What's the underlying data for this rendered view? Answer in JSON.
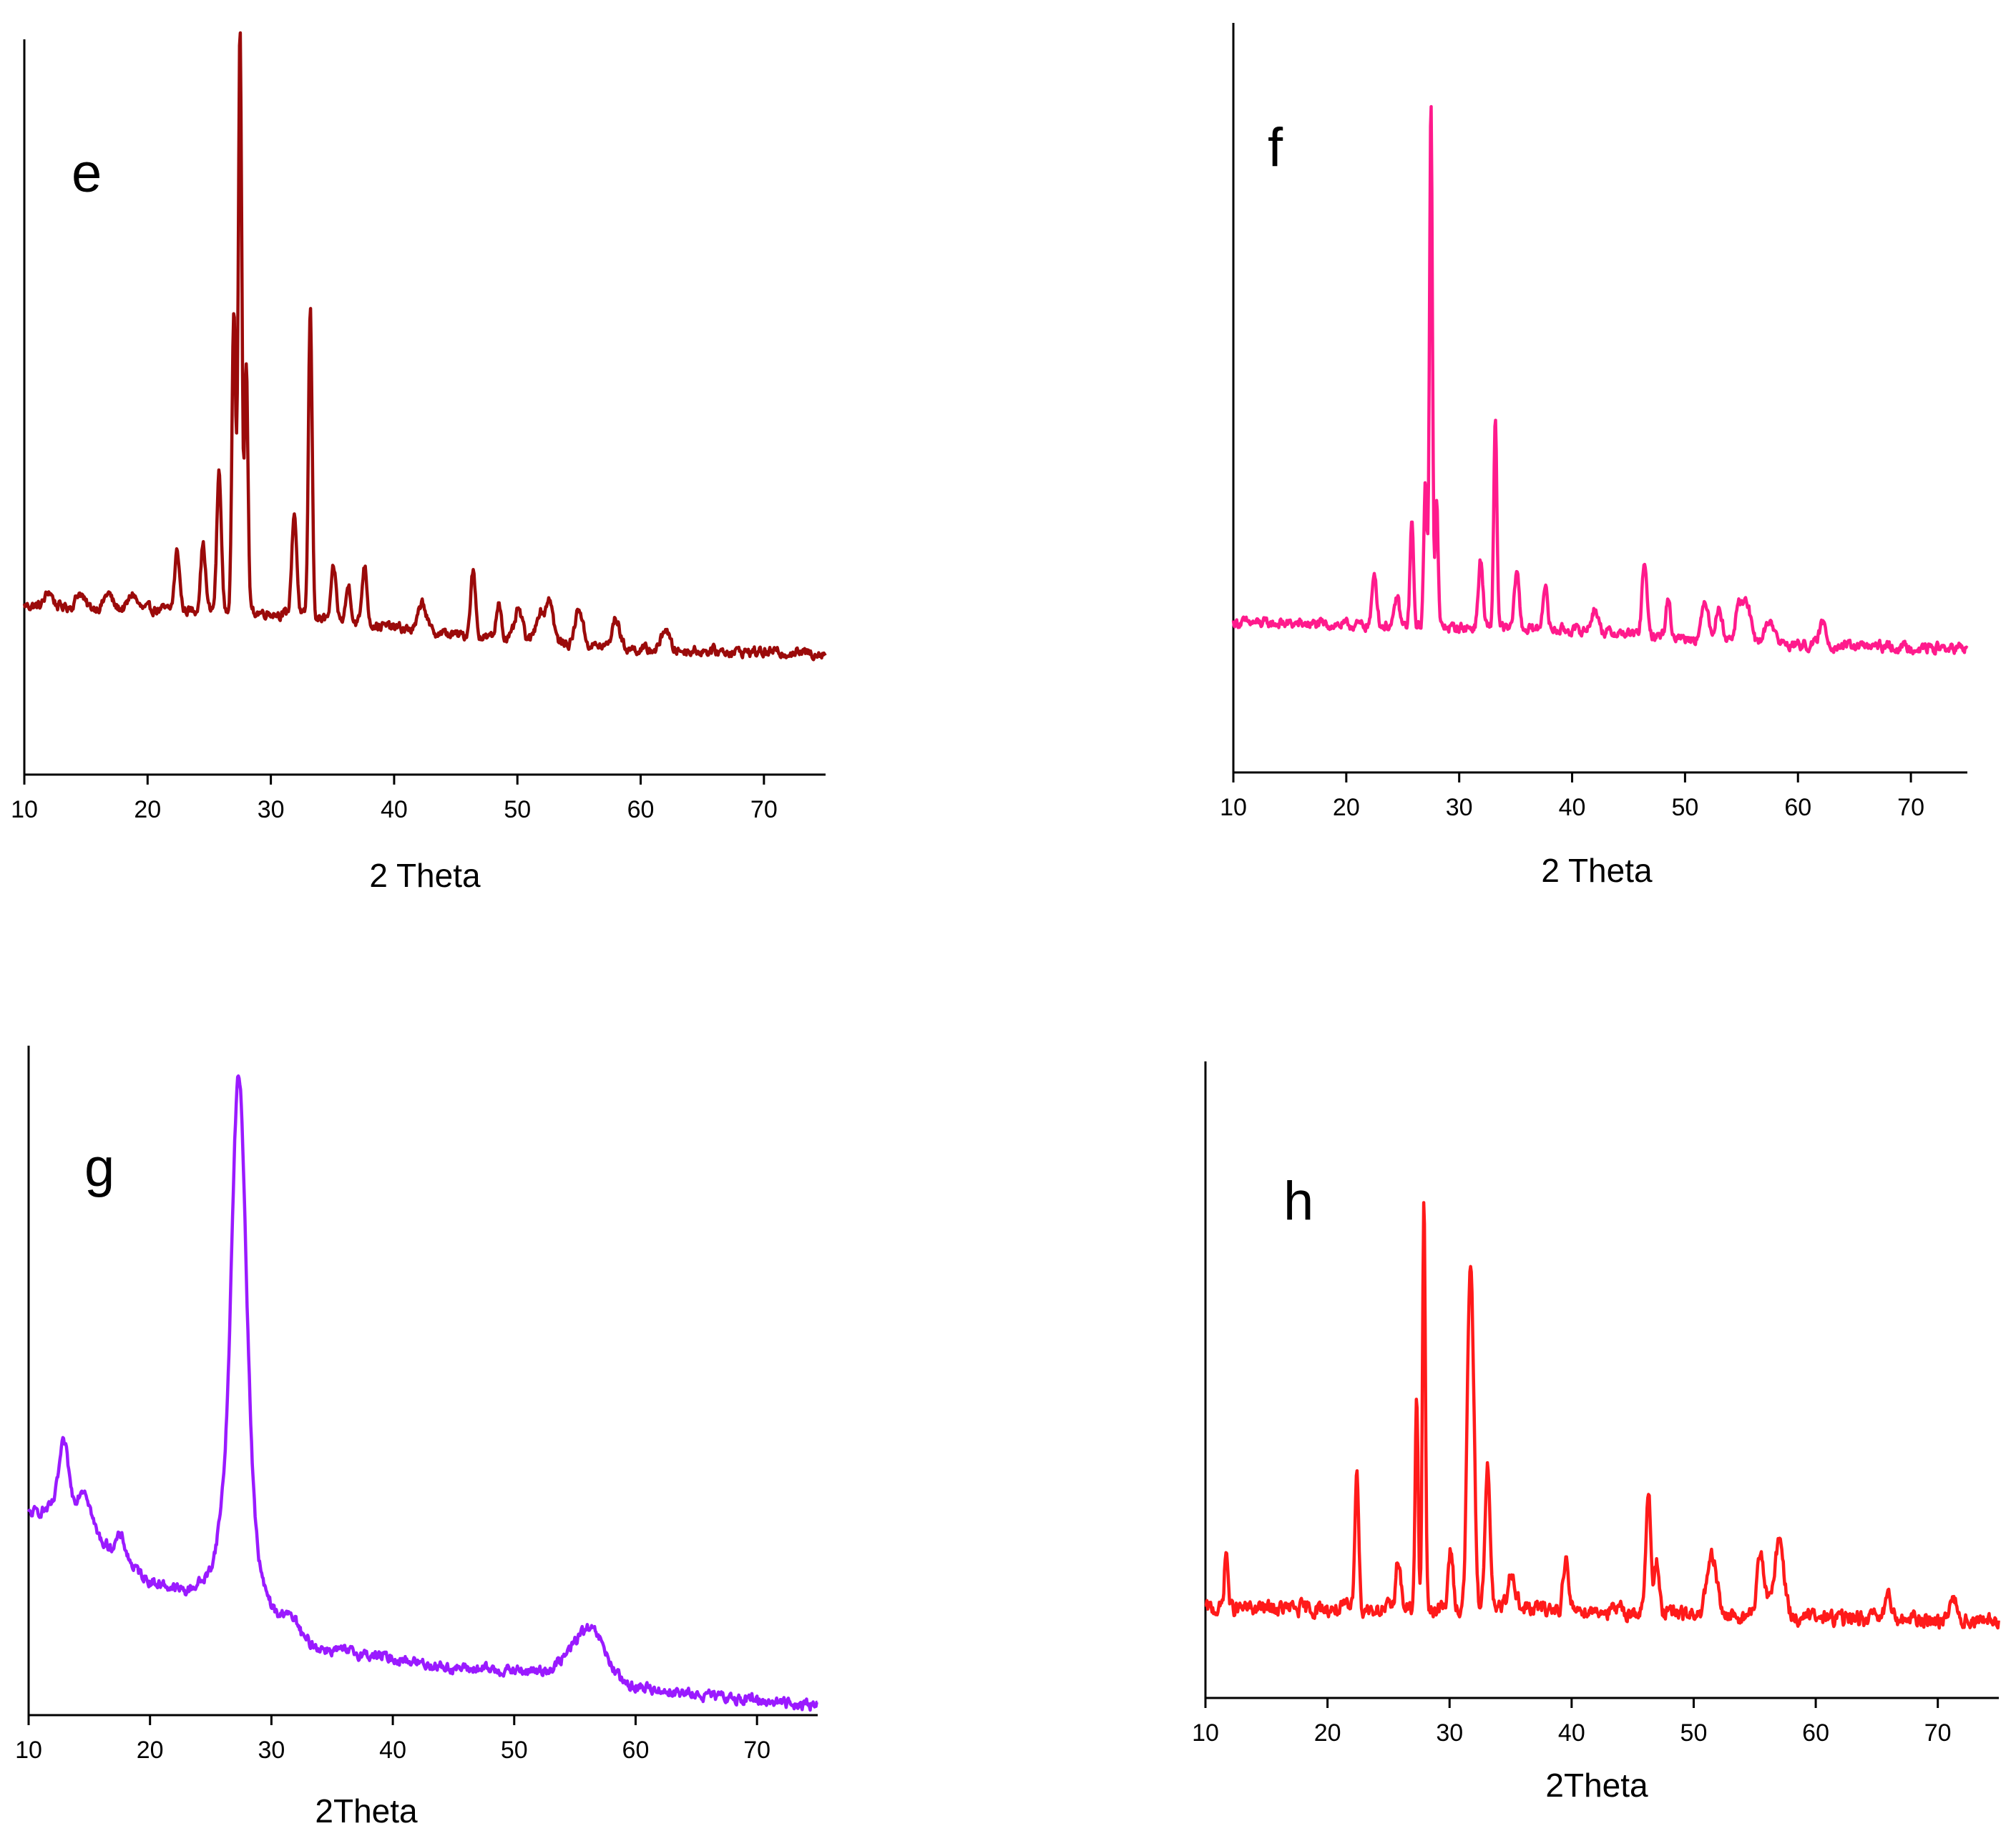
{
  "chart_data": [
    {
      "panel": "e",
      "type": "line",
      "label": "e",
      "xlabel": "2 Theta",
      "ylabel": "",
      "xlim": [
        10,
        75
      ],
      "xticks": [
        10,
        20,
        30,
        40,
        50,
        60,
        70
      ],
      "ylim": [
        0,
        100
      ],
      "color": "#9b0a0a",
      "series": [
        {
          "name": "e",
          "baseline": [
            [
              10,
              23.0
            ],
            [
              30,
              22.0
            ],
            [
              45,
              19.0
            ],
            [
              60,
              17.0
            ],
            [
              75,
              16.5
            ]
          ],
          "noise": 1.2,
          "peaks": [
            [
              12.0,
              2,
              0.3
            ],
            [
              14.5,
              2,
              0.3
            ],
            [
              16.8,
              2,
              0.3
            ],
            [
              18.8,
              2,
              0.3
            ],
            [
              22.4,
              8,
              0.2
            ],
            [
              24.5,
              9,
              0.2
            ],
            [
              25.8,
              19,
              0.18
            ],
            [
              27.0,
              41,
              0.15
            ],
            [
              27.5,
              80,
              0.14
            ],
            [
              28.0,
              34,
              0.14
            ],
            [
              31.9,
              14,
              0.2
            ],
            [
              33.2,
              42,
              0.15
            ],
            [
              35.1,
              7,
              0.2
            ],
            [
              36.3,
              5,
              0.2
            ],
            [
              37.6,
              8,
              0.2
            ],
            [
              42.3,
              4,
              0.3
            ],
            [
              46.4,
              9,
              0.2
            ],
            [
              48.5,
              5,
              0.2
            ],
            [
              50.1,
              4,
              0.3
            ],
            [
              51.8,
              4,
              0.3
            ],
            [
              52.6,
              6,
              0.3
            ],
            [
              55.0,
              5,
              0.3
            ],
            [
              58.0,
              4,
              0.3
            ],
            [
              62.0,
              3,
              0.3
            ]
          ]
        }
      ]
    },
    {
      "panel": "f",
      "type": "line",
      "label": "f",
      "xlabel": "2 Theta",
      "ylabel": "",
      "xlim": [
        10,
        75
      ],
      "xticks": [
        10,
        20,
        30,
        40,
        50,
        60,
        70
      ],
      "ylim": [
        0,
        100
      ],
      "color": "#ff1a8c",
      "series": [
        {
          "name": "f",
          "baseline": [
            [
              10,
              20.0
            ],
            [
              40,
              19.0
            ],
            [
              60,
              17.0
            ],
            [
              75,
              16.5
            ]
          ],
          "noise": 1.2,
          "peaks": [
            [
              22.5,
              7,
              0.2
            ],
            [
              24.5,
              4,
              0.2
            ],
            [
              25.8,
              14,
              0.15
            ],
            [
              27.0,
              19,
              0.14
            ],
            [
              27.5,
              70,
              0.13
            ],
            [
              28.0,
              17,
              0.13
            ],
            [
              31.9,
              9,
              0.2
            ],
            [
              33.2,
              28,
              0.14
            ],
            [
              35.1,
              8,
              0.2
            ],
            [
              37.6,
              6,
              0.2
            ],
            [
              42.0,
              3,
              0.3
            ],
            [
              46.4,
              10,
              0.2
            ],
            [
              48.5,
              5,
              0.2
            ],
            [
              51.8,
              5,
              0.3
            ],
            [
              53.0,
              4,
              0.3
            ],
            [
              54.8,
              5,
              0.3
            ],
            [
              55.5,
              5,
              0.3
            ],
            [
              57.5,
              3,
              0.4
            ],
            [
              62.2,
              3,
              0.3
            ]
          ]
        }
      ]
    },
    {
      "panel": "g",
      "type": "line",
      "label": "g",
      "xlabel": "2Theta",
      "ylabel": "",
      "xlim": [
        10,
        75
      ],
      "xticks": [
        10,
        20,
        30,
        40,
        50,
        60,
        70
      ],
      "ylim": [
        0,
        100
      ],
      "color": "#9a1aff",
      "series": [
        {
          "name": "g",
          "baseline": [
            [
              10,
              30.0
            ],
            [
              12,
              31.0
            ],
            [
              14,
              30.0
            ],
            [
              16,
              26.0
            ],
            [
              18,
              23.0
            ],
            [
              20,
              20.0
            ],
            [
              23,
              18.5
            ],
            [
              25,
              21.0
            ],
            [
              29,
              20.0
            ],
            [
              31,
              13.0
            ],
            [
              34,
              10.0
            ],
            [
              40,
              8.5
            ],
            [
              45,
              7.0
            ],
            [
              52,
              6.5
            ],
            [
              55,
              7.5
            ],
            [
              57,
              8.0
            ],
            [
              59,
              4.5
            ],
            [
              65,
              3.0
            ],
            [
              75,
              1.5
            ]
          ],
          "noise": 1.4,
          "peaks": [
            [
              12.9,
              10,
              0.4
            ],
            [
              14.6,
              5,
              0.5
            ],
            [
              17.6,
              3,
              0.4
            ],
            [
              26.0,
              8,
              0.5
            ],
            [
              27.2,
              60,
              0.55
            ],
            [
              27.8,
              22,
              0.6
            ],
            [
              31.2,
              3,
              0.3
            ],
            [
              32.0,
              2,
              0.3
            ],
            [
              56.0,
              5,
              1.2
            ]
          ]
        }
      ]
    },
    {
      "panel": "h",
      "type": "line",
      "label": "h",
      "xlabel": "2Theta",
      "ylabel": "",
      "xlim": [
        10,
        75
      ],
      "xticks": [
        10,
        20,
        30,
        40,
        50,
        60,
        70
      ],
      "ylim": [
        0,
        100
      ],
      "color": "#ff1a1a",
      "series": [
        {
          "name": "h",
          "baseline": [
            [
              10,
              14.0
            ],
            [
              40,
              14.0
            ],
            [
              50,
              13.0
            ],
            [
              75,
              12.0
            ]
          ],
          "noise": 2.2,
          "peaks": [
            [
              11.7,
              9,
              0.15
            ],
            [
              22.4,
              23,
              0.15
            ],
            [
              25.8,
              8,
              0.2
            ],
            [
              27.3,
              33,
              0.12
            ],
            [
              27.9,
              64,
              0.12
            ],
            [
              30.1,
              9,
              0.2
            ],
            [
              31.6,
              40,
              0.2
            ],
            [
              31.9,
              30,
              0.2
            ],
            [
              33.1,
              23,
              0.2
            ],
            [
              35.1,
              6,
              0.3
            ],
            [
              39.5,
              8,
              0.2
            ],
            [
              46.3,
              19,
              0.2
            ],
            [
              47.0,
              8,
              0.2
            ],
            [
              51.5,
              9,
              0.4
            ],
            [
              55.5,
              10,
              0.3
            ],
            [
              57.0,
              12,
              0.4
            ],
            [
              66.0,
              3,
              0.3
            ],
            [
              71.3,
              4,
              0.3
            ]
          ]
        }
      ]
    }
  ]
}
